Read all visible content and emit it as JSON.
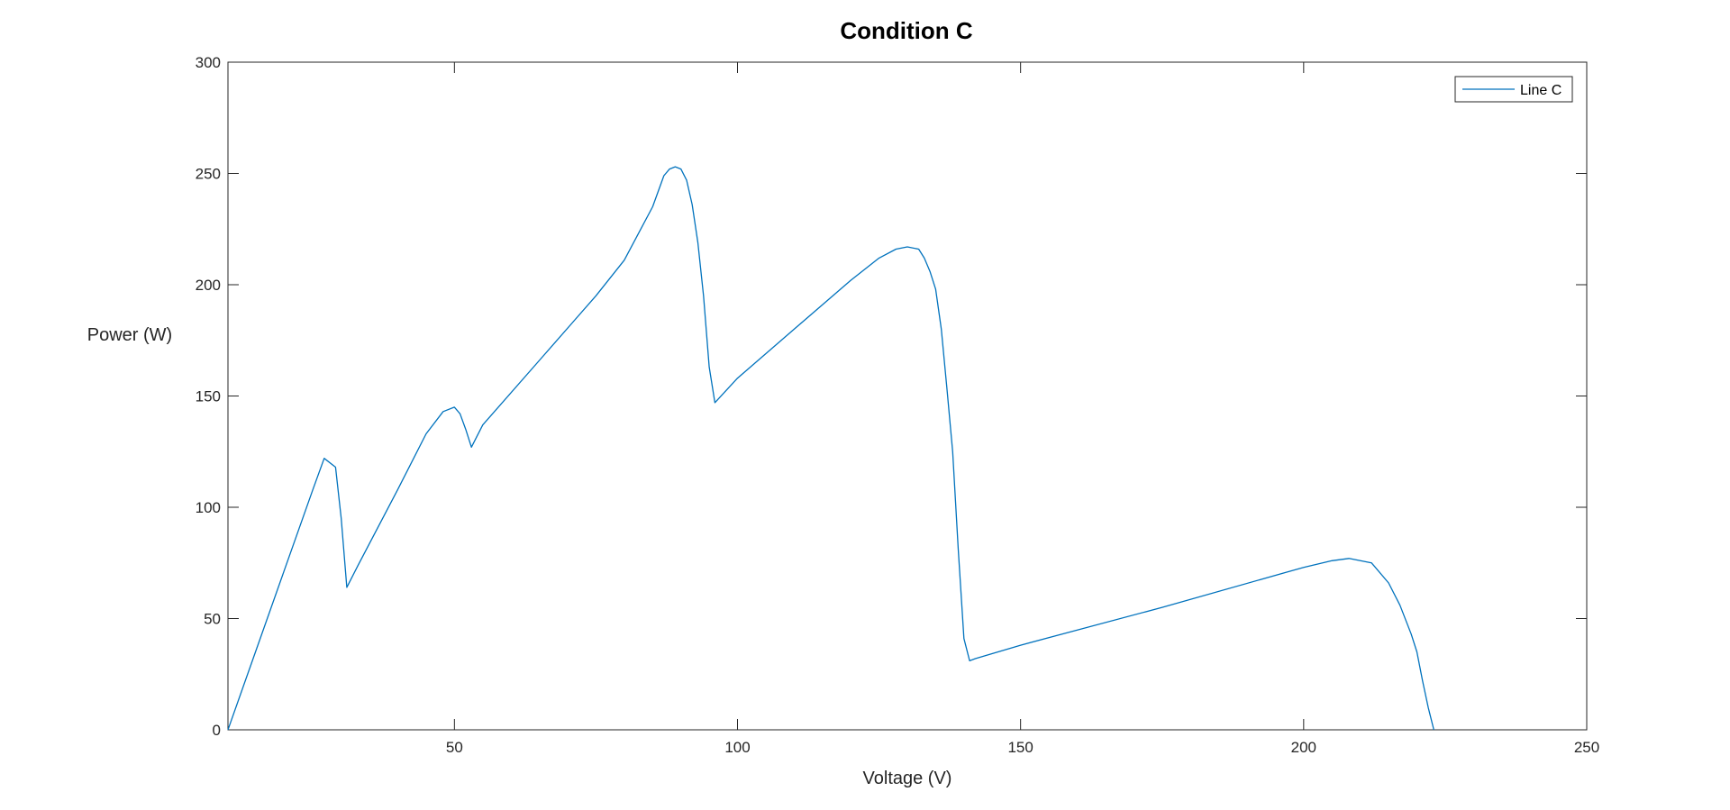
{
  "chart_data": {
    "type": "line",
    "title": "Condition C",
    "xlabel": "Voltage (V)",
    "ylabel": "Power (W)",
    "xlim": [
      10,
      250
    ],
    "ylim": [
      0,
      300
    ],
    "xticks": [
      50,
      100,
      150,
      200,
      250
    ],
    "yticks": [
      0,
      50,
      100,
      150,
      200,
      250,
      300
    ],
    "grid": false,
    "legend_position": "top-right",
    "series": [
      {
        "name": "Line C",
        "color": "#0072BD",
        "x": [
          10,
          15,
          20,
          25,
          27,
          29,
          30,
          31,
          33,
          40,
          45,
          48,
          50,
          51,
          52,
          53,
          55,
          65,
          75,
          80,
          85,
          87,
          88,
          89,
          90,
          91,
          92,
          93,
          94,
          95,
          96,
          100,
          110,
          120,
          125,
          128,
          130,
          132,
          133,
          134,
          135,
          136,
          137,
          138,
          139,
          140,
          141,
          142,
          150,
          175,
          200,
          205,
          208,
          212,
          215,
          217,
          219,
          220,
          221,
          222,
          223
        ],
        "y": [
          0,
          36,
          72,
          108,
          122,
          118,
          95,
          64,
          74,
          108,
          133,
          143,
          145,
          142,
          135,
          127,
          137,
          166,
          195,
          211,
          235,
          249,
          252,
          253,
          252,
          247,
          236,
          219,
          195,
          163,
          147,
          158,
          180,
          202,
          212,
          216,
          217,
          216,
          212,
          206,
          198,
          180,
          153,
          125,
          81,
          41,
          31,
          32,
          38,
          55,
          73,
          76,
          77,
          75,
          66,
          56,
          43,
          35,
          22,
          10,
          0
        ]
      }
    ]
  }
}
